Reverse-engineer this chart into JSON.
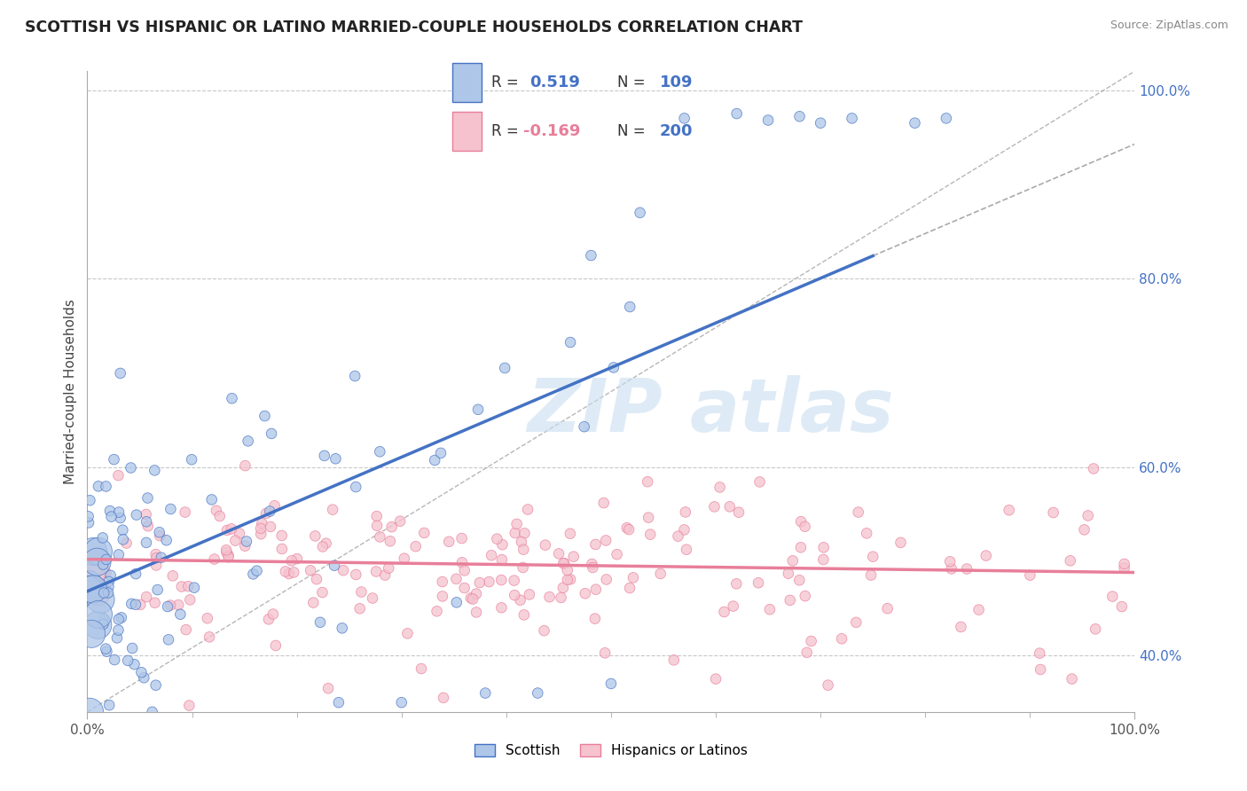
{
  "title": "SCOTTISH VS HISPANIC OR LATINO MARRIED-COUPLE HOUSEHOLDS CORRELATION CHART",
  "source": "Source: ZipAtlas.com",
  "ylabel": "Married-couple Households",
  "xlim": [
    0.0,
    1.0
  ],
  "ylim": [
    0.34,
    1.02
  ],
  "ytick_positions": [
    0.4,
    0.6,
    0.8,
    1.0
  ],
  "ytick_labels": [
    "40.0%",
    "60.0%",
    "80.0%",
    "100.0%"
  ],
  "xtick_positions": [
    0.0,
    0.1,
    0.2,
    0.3,
    0.4,
    0.5,
    0.6,
    0.7,
    0.8,
    0.9,
    1.0
  ],
  "r_blue": 0.519,
  "n_blue": 109,
  "r_pink": -0.169,
  "n_pink": 200,
  "blue_color": "#4472c4",
  "blue_fill": "#aec6e8",
  "pink_color": "#e87f9a",
  "pink_fill": "#f5c2ce",
  "diag_color": "#aaaaaa",
  "background_color": "#ffffff",
  "grid_color": "#c8c8c8",
  "title_fontsize": 12.5,
  "axis_label_fontsize": 11,
  "tick_fontsize": 11,
  "seed": 7,
  "dot_size": 70,
  "blue_trend_start_x": 0.0,
  "blue_trend_start_y": 0.468,
  "blue_trend_end_x": 0.75,
  "blue_trend_end_y": 0.824,
  "pink_trend_start_x": 0.0,
  "pink_trend_start_y": 0.502,
  "pink_trend_end_x": 1.0,
  "pink_trend_end_y": 0.488,
  "watermark_color": "#c8dff0"
}
